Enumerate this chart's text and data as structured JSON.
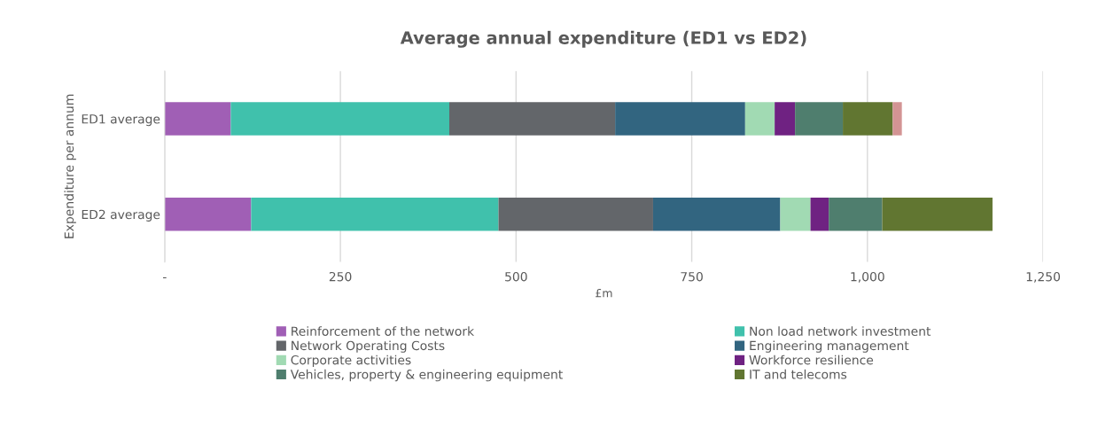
{
  "chart_data": {
    "type": "bar",
    "orientation": "horizontal",
    "stacked": true,
    "title": "Average annual expenditure (ED1 vs ED2)",
    "xlabel": "£m",
    "ylabel": "Expenditure per annum",
    "categories": [
      "ED1 average",
      "ED2 average"
    ],
    "series": [
      {
        "name": "Reinforcement of the network",
        "color": "#a05fb5",
        "values": [
          94,
          123
        ]
      },
      {
        "name": "Non load network investment",
        "color": "#40c1ac",
        "values": [
          311,
          352
        ]
      },
      {
        "name": "Network Operating Costs",
        "color": "#63666a",
        "values": [
          236,
          220
        ]
      },
      {
        "name": "Engineering management",
        "color": "#326580",
        "values": [
          185,
          181
        ]
      },
      {
        "name": "Corporate activities",
        "color": "#a1dab3",
        "values": [
          42,
          43
        ]
      },
      {
        "name": "Workforce resilience",
        "color": "#6f2282",
        "values": [
          29,
          26
        ]
      },
      {
        "name": "Vehicles, property & engineering equipment",
        "color": "#4f7e6e",
        "values": [
          68,
          76
        ]
      },
      {
        "name": "IT and telecoms",
        "color": "#617631",
        "values": [
          71,
          157
        ]
      },
      {
        "color": "#d39494",
        "values": [
          13,
          null
        ]
      }
    ],
    "xlim": [
      0,
      1250
    ],
    "xticks": [
      {
        "value": 0,
        "label": "-"
      },
      250,
      500,
      750,
      {
        "value": 1000,
        "label": "1,000"
      },
      {
        "value": 1250,
        "label": "1,250"
      }
    ],
    "grid": "x",
    "legend": "bottom"
  }
}
